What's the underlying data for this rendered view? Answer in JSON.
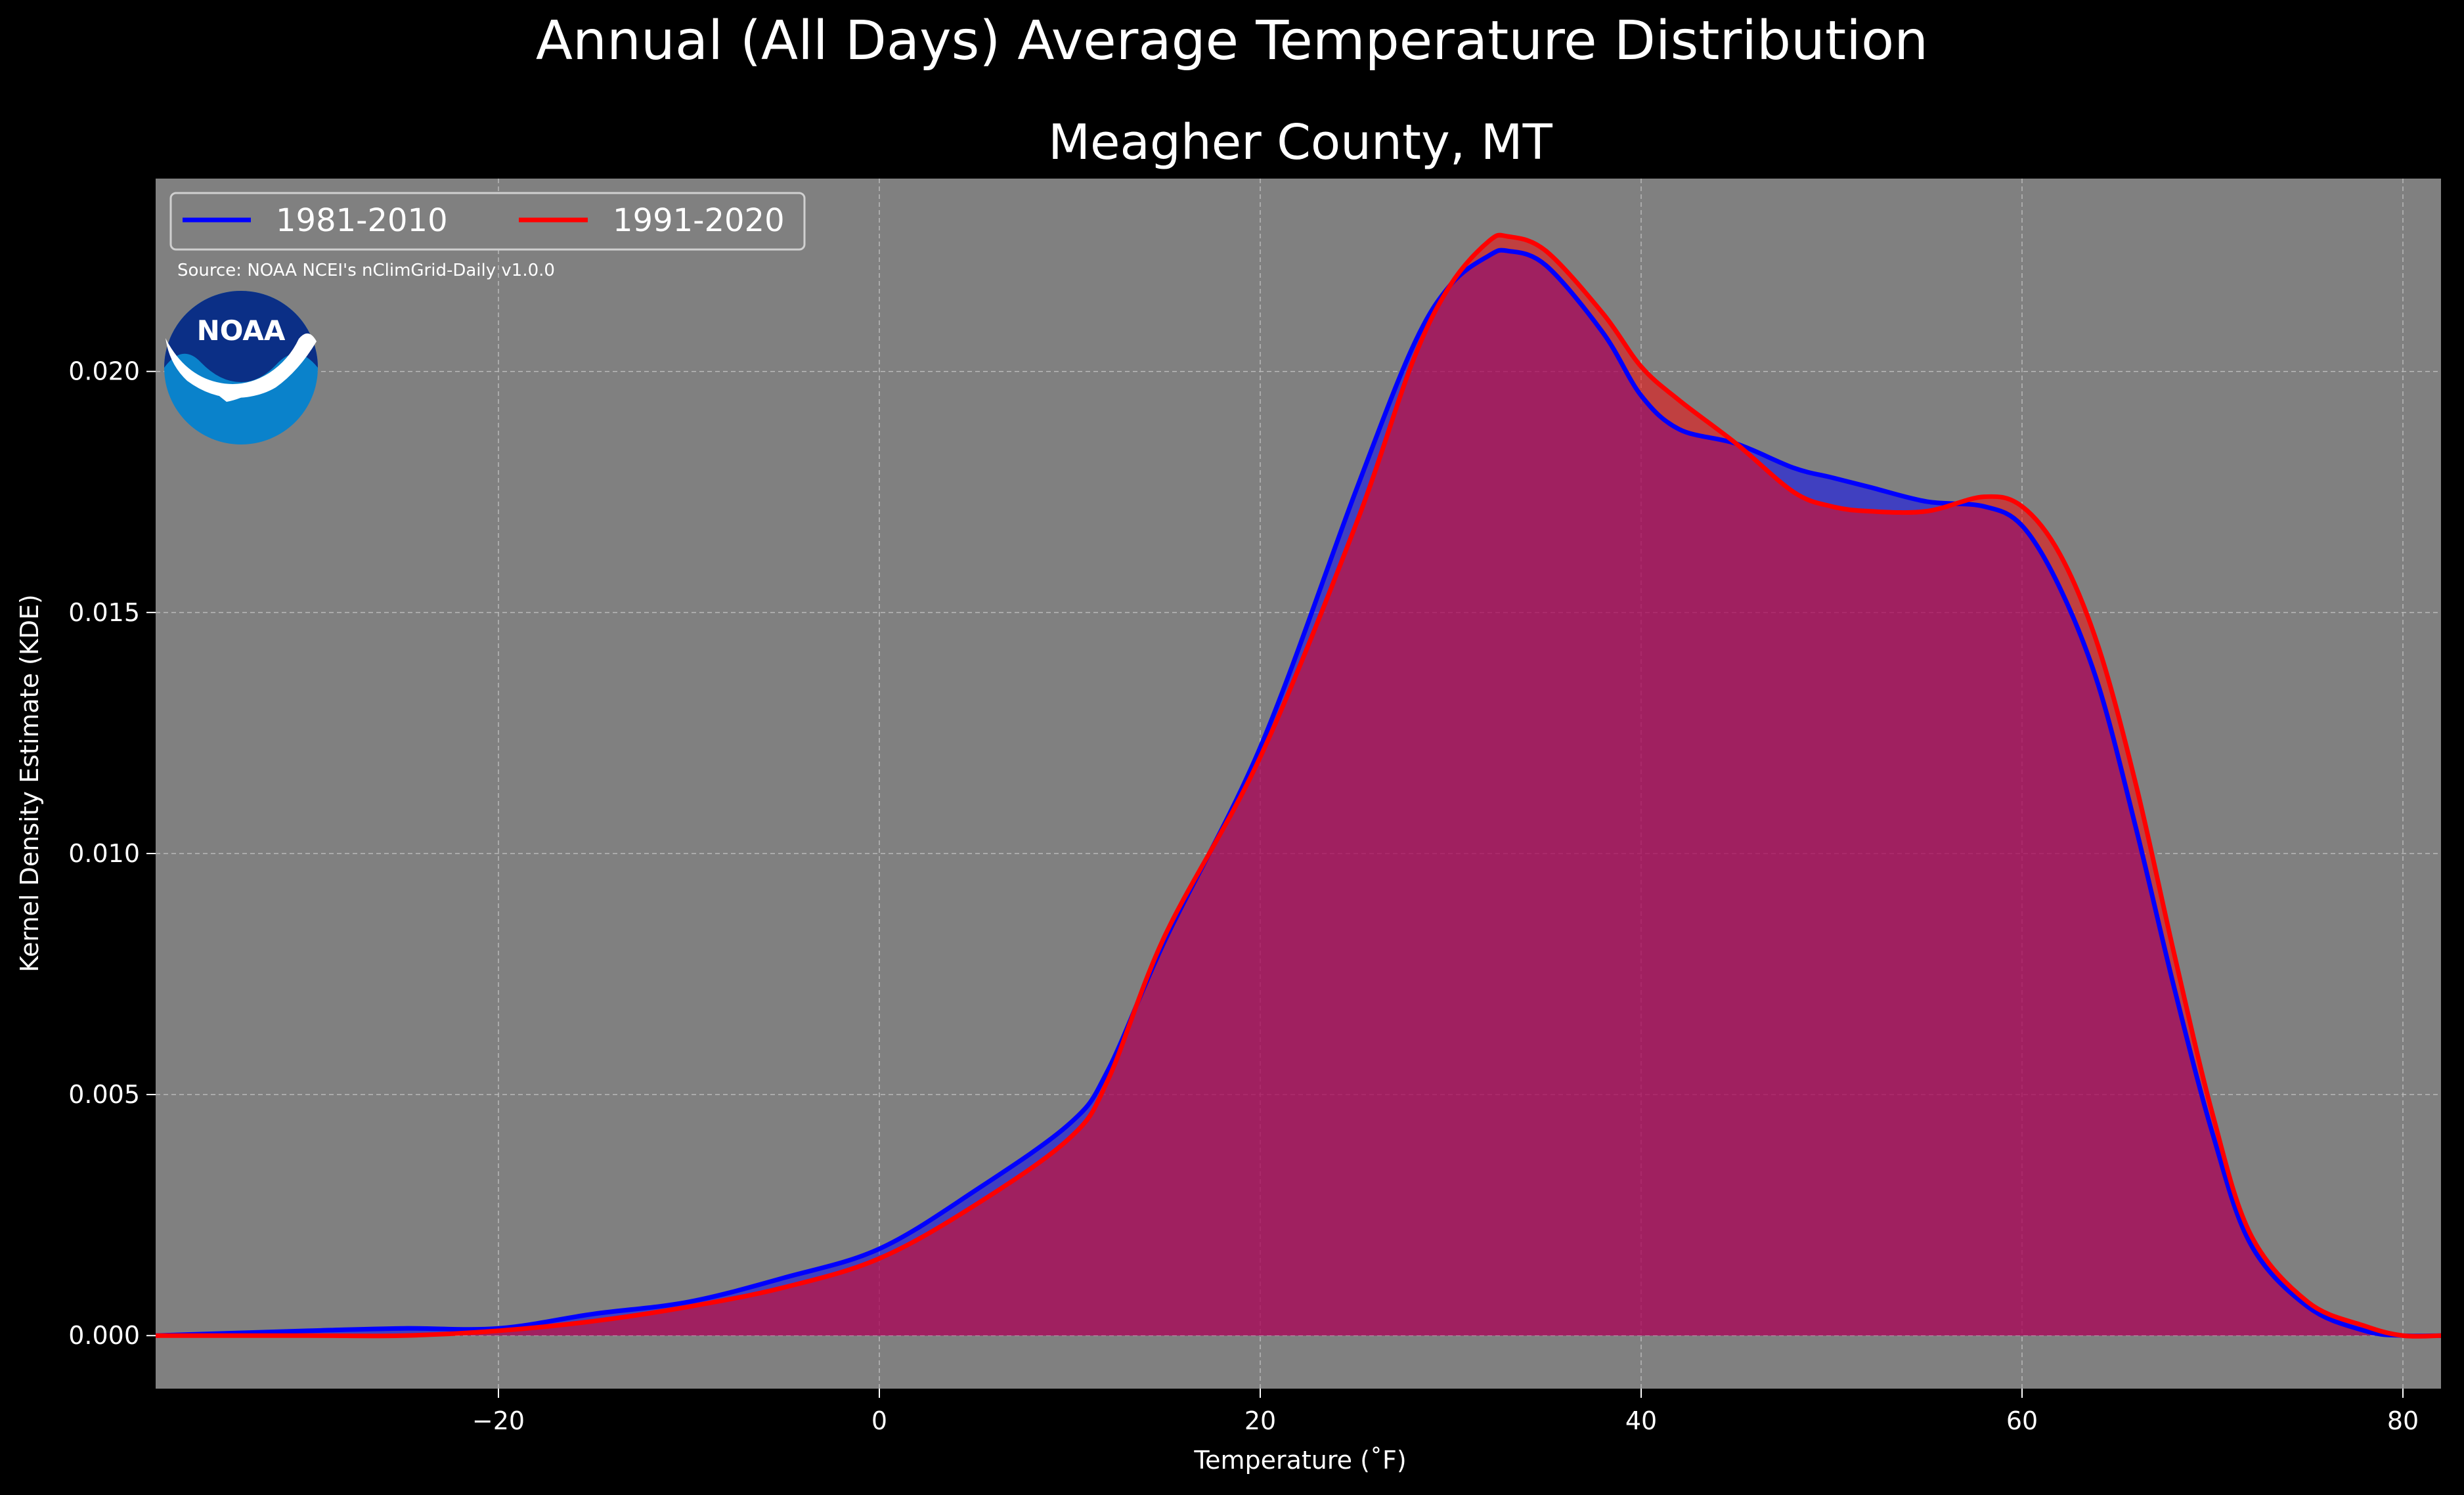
{
  "suptitle": "Annual (All Days) Average Temperature Distribution",
  "chart_data": {
    "type": "area",
    "title": "Meagher County, MT",
    "xlabel": "Temperature (˚F)",
    "ylabel": "Kernel Density Estimate (KDE)",
    "xlim": [
      -38,
      82
    ],
    "ylim": [
      -0.0011,
      0.024
    ],
    "xticks": [
      -20,
      0,
      20,
      40,
      60,
      80
    ],
    "xtick_labels": [
      "−20",
      "0",
      "20",
      "40",
      "60",
      "80"
    ],
    "yticks": [
      0.0,
      0.005,
      0.01,
      0.015,
      0.02
    ],
    "ytick_labels": [
      "0.000",
      "0.005",
      "0.010",
      "0.015",
      "0.020"
    ],
    "grid": true,
    "legend_position": "top-left",
    "source_note": "Source: NOAA NCEI's nClimGrid-Daily v1.0.0",
    "logo_text": "NOAA",
    "colors": {
      "figure_bg": "#000000",
      "axes_bg": "#808080",
      "grid": "#b8b8b8",
      "overlap_fill": "#9e1f5c"
    },
    "series": [
      {
        "name": "1981-2010",
        "color": "#0000ff",
        "x": [
          -38,
          -30,
          -25,
          -20,
          -15,
          -10,
          -5,
          0,
          5,
          10,
          12,
          15,
          20,
          25,
          28,
          30,
          32,
          33,
          35,
          38,
          40,
          42,
          45,
          48,
          50,
          52,
          55,
          58,
          60,
          62,
          64,
          66,
          68,
          70,
          72,
          75,
          78,
          80,
          82
        ],
        "y": [
          0.0,
          0.0001,
          0.00015,
          0.00015,
          0.00045,
          0.0007,
          0.0012,
          0.0018,
          0.003,
          0.0044,
          0.0055,
          0.0082,
          0.0122,
          0.0175,
          0.0205,
          0.0218,
          0.0224,
          0.0225,
          0.0222,
          0.0208,
          0.0195,
          0.0188,
          0.0185,
          0.018,
          0.0178,
          0.0176,
          0.0173,
          0.0172,
          0.0168,
          0.0155,
          0.0135,
          0.0105,
          0.0072,
          0.0042,
          0.0019,
          0.0006,
          0.0001,
          0.0,
          0.0
        ]
      },
      {
        "name": "1991-2020",
        "color": "#ff0000",
        "x": [
          -38,
          -30,
          -25,
          -20,
          -15,
          -10,
          -5,
          0,
          5,
          10,
          12,
          15,
          20,
          25,
          28,
          30,
          32,
          33,
          35,
          38,
          40,
          42,
          45,
          48,
          50,
          52,
          55,
          58,
          60,
          62,
          64,
          66,
          68,
          70,
          72,
          75,
          78,
          80,
          82
        ],
        "y": [
          0.0,
          0.0,
          0.0,
          0.0001,
          0.0003,
          0.0006,
          0.001,
          0.0016,
          0.0027,
          0.0041,
          0.0053,
          0.0083,
          0.012,
          0.0168,
          0.0202,
          0.0218,
          0.0227,
          0.0228,
          0.0225,
          0.0212,
          0.0201,
          0.0194,
          0.0185,
          0.0175,
          0.0172,
          0.0171,
          0.0171,
          0.0174,
          0.0172,
          0.0162,
          0.0143,
          0.0114,
          0.0079,
          0.0046,
          0.0021,
          0.0007,
          0.0002,
          0.0,
          0.0
        ]
      }
    ]
  }
}
